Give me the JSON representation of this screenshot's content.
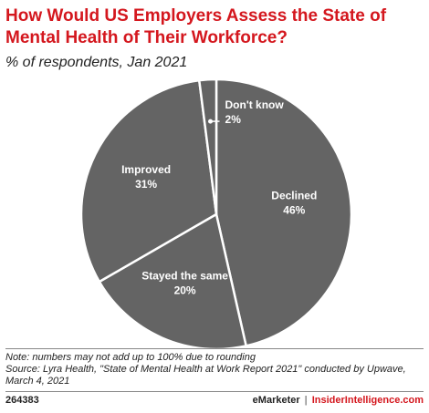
{
  "chart_data": {
    "type": "pie",
    "title": "How Would US Employers Assess the State of Mental Health of Their Workforce?",
    "subtitle": "% of respondents, Jan 2021",
    "categories": [
      "Declined",
      "Stayed the same",
      "Improved",
      "Don't know"
    ],
    "values": [
      46,
      20,
      31,
      2
    ],
    "value_labels": [
      "46%",
      "20%",
      "31%",
      "2%"
    ],
    "color": "#646464",
    "note": "Note: numbers may not add up to 100% due to rounding",
    "source": "Source: Lyra Health, \"State of Mental Health at Work Report 2021\" conducted by Upwave, March 4, 2021",
    "chart_id": "264383",
    "brand": "eMarketer",
    "site": "InsiderIntelligence.com"
  }
}
